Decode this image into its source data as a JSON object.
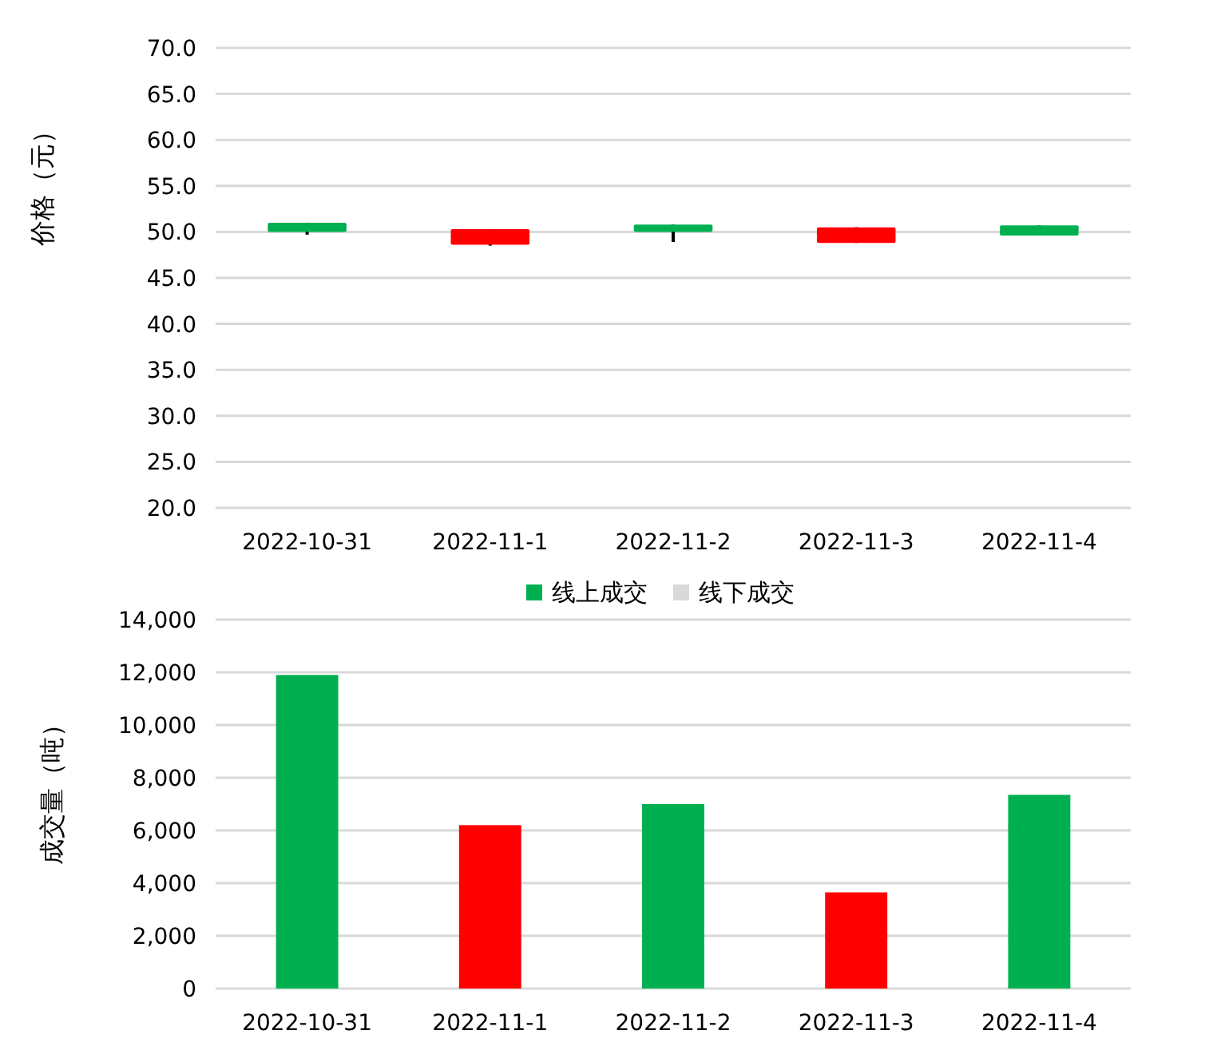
{
  "chart_data": [
    {
      "type": "candlestick",
      "ylabel": "价格（元）",
      "categories": [
        "2022-10-31",
        "2022-11-1",
        "2022-11-2",
        "2022-11-3",
        "2022-11-4"
      ],
      "ohlc": [
        [
          51.0,
          51.0,
          49.7,
          50.0
        ],
        [
          48.6,
          50.3,
          48.5,
          50.3
        ],
        [
          50.8,
          50.8,
          48.9,
          50.0
        ],
        [
          48.8,
          50.5,
          48.8,
          50.5
        ],
        [
          50.7,
          50.7,
          49.6,
          49.6
        ]
      ],
      "colors": [
        "#00b050",
        "#ff0000",
        "#00b050",
        "#ff0000",
        "#00b050"
      ],
      "ylim": [
        20,
        70
      ],
      "yticks": [
        {
          "value": 20,
          "label": "20.0"
        },
        {
          "value": 25,
          "label": "25.0"
        },
        {
          "value": 30,
          "label": "30.0"
        },
        {
          "value": 35,
          "label": "35.0"
        },
        {
          "value": 40,
          "label": "40.0"
        },
        {
          "value": 45,
          "label": "45.0"
        },
        {
          "value": 50,
          "label": "50.0"
        },
        {
          "value": 55,
          "label": "55.0"
        },
        {
          "value": 60,
          "label": "60.0"
        },
        {
          "value": 65,
          "label": "65.0"
        },
        {
          "value": 70,
          "label": "70.0"
        }
      ],
      "grid": "y"
    },
    {
      "type": "bar",
      "ylabel": "成交量（吨）",
      "categories": [
        "2022-10-31",
        "2022-11-1",
        "2022-11-2",
        "2022-11-3",
        "2022-11-4"
      ],
      "series": [
        {
          "name": "线上成交",
          "color": "#00b050",
          "colors": [
            "#00b050",
            "#ff0000",
            "#00b050",
            "#ff0000",
            "#00b050"
          ],
          "values": [
            11900,
            6200,
            7000,
            3650,
            7350
          ]
        },
        {
          "name": "线下成交",
          "color": "#d9d9d9",
          "values": [
            null,
            null,
            null,
            null,
            null
          ]
        }
      ],
      "ylim": [
        0,
        14000
      ],
      "yticks": [
        0,
        {
          "value": 2000,
          "label": "2,000"
        },
        {
          "value": 4000,
          "label": "4,000"
        },
        {
          "value": 6000,
          "label": "6,000"
        },
        {
          "value": 8000,
          "label": "8,000"
        },
        {
          "value": 10000,
          "label": "10,000"
        },
        {
          "value": 12000,
          "label": "12,000"
        },
        {
          "value": 14000,
          "label": "14,000"
        }
      ],
      "grid": "y",
      "legend": "top"
    }
  ]
}
